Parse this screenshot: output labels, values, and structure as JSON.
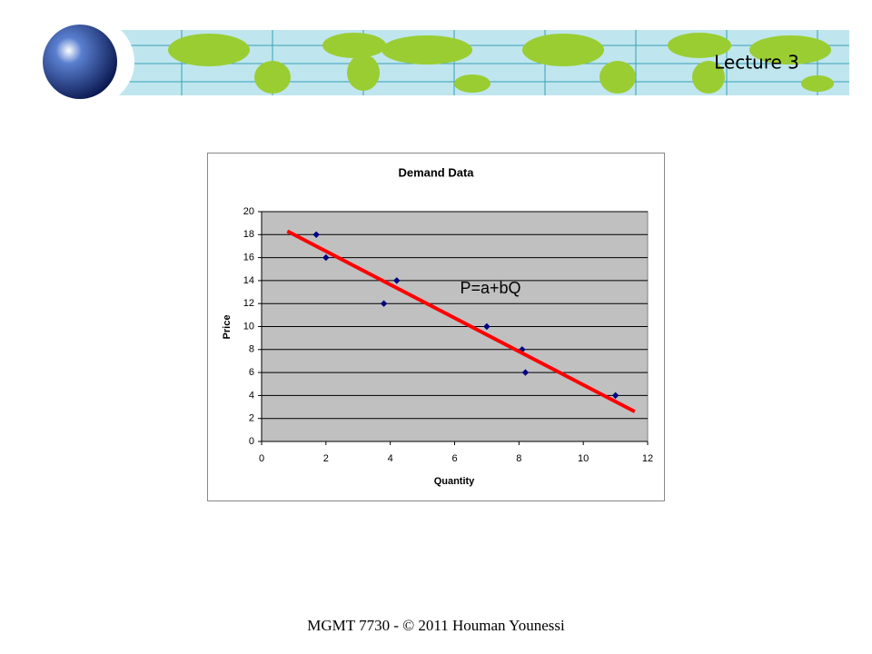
{
  "header": {
    "title": "Lecture 3"
  },
  "chart_data": {
    "type": "scatter",
    "title": "Demand Data",
    "x_label": "Quantity",
    "y_label": "Price",
    "x": [
      1.7,
      2,
      3.8,
      4.2,
      7,
      8.1,
      8.2,
      11
    ],
    "values": [
      18,
      16,
      12,
      14,
      10,
      8,
      6,
      4
    ],
    "color": "#000080",
    "trendline": {
      "x": [
        0.8,
        11.6
      ],
      "values": [
        18.3,
        2.6
      ],
      "color": "#ff0000"
    },
    "annotation": "P=a+bQ",
    "xlim": [
      0,
      12
    ],
    "xticks": [
      0,
      2,
      4,
      6,
      8,
      10,
      12
    ],
    "ylim": [
      0,
      20
    ],
    "yticks": [
      0,
      2,
      4,
      6,
      8,
      10,
      12,
      14,
      16,
      18,
      20
    ],
    "grid": true
  },
  "footer": {
    "text": "MGMT 7730 - © 2011 Houman Younessi"
  }
}
